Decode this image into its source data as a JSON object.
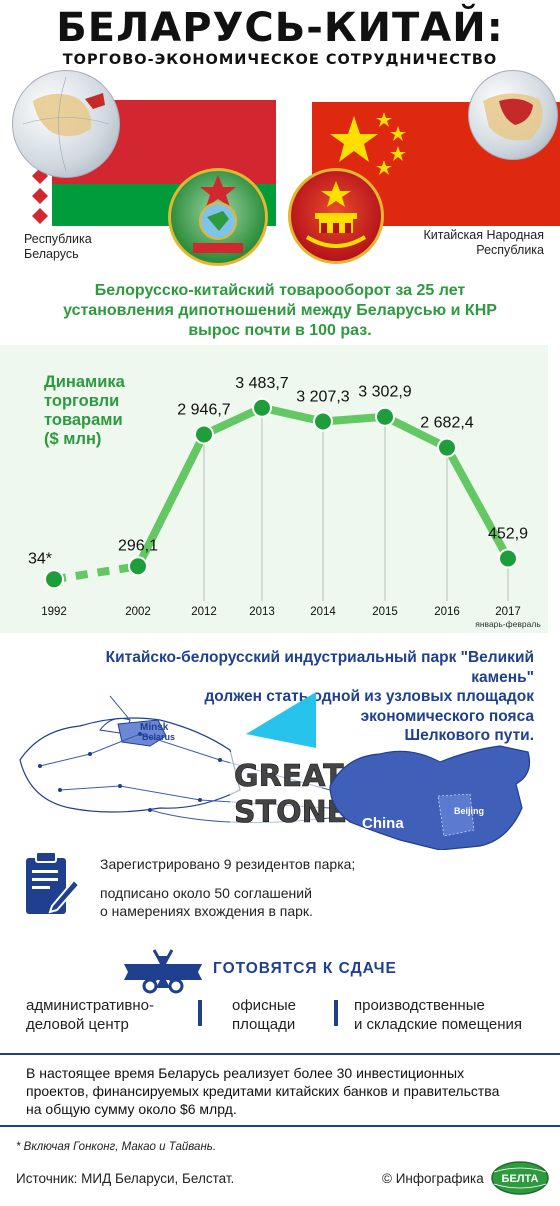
{
  "header": {
    "title": "БЕЛАРУСЬ-КИТАЙ:",
    "subtitle": "ТОРГОВО-ЭКОНОМИЧЕСКОЕ СОТРУДНИЧЕСТВО"
  },
  "countries": {
    "left_line1": "Республика",
    "left_line2": "Беларусь",
    "right_line1": "Китайская Народная",
    "right_line2": "Республика"
  },
  "headline": {
    "line1": "Белорусско-китайский товарооборот за 25 лет",
    "line2": "установления дипотношений между Беларусью и КНР",
    "line3": "вырос почти в 100 раз."
  },
  "chart_data": {
    "type": "line",
    "title_lines": [
      "Динамика",
      "торговли",
      "товарами",
      "($ млн)"
    ],
    "x": [
      "1992",
      "2002",
      "2012",
      "2013",
      "2014",
      "2015",
      "2016",
      "2017"
    ],
    "x_sublabel": "январь-февраль",
    "values": [
      34,
      296.1,
      2946.7,
      3483.7,
      3207.3,
      3302.9,
      2682.4,
      452.9
    ],
    "labels": [
      "34*",
      "296,1",
      "2 946,7",
      "3 483,7",
      "3 207,3",
      "3 302,9",
      "2 682,4",
      "452,9"
    ],
    "ylim": [
      0,
      3700
    ],
    "segments_dashed": [
      true,
      false,
      false,
      false,
      false,
      false,
      false
    ],
    "color": "#63c763",
    "marker_color": "#1d9e3a",
    "grid": false
  },
  "park": {
    "line1": "Китайско-белорусский индустриальный парк \"Великий камень\"",
    "line2": "должен стать одной из узловых площадок",
    "line3": "экономического пояса",
    "line4": "Шелкового пути.",
    "great": "GREAT",
    "stone": "STONE",
    "minsk": "Minsk",
    "belarus": "Belarus",
    "china": "China",
    "beijing": "Beijing"
  },
  "residents": {
    "line1": "Зарегистрировано 9 резидентов парка;",
    "line2": "подписано около 50 соглашений",
    "line3": "о намерениях вхождения в парк."
  },
  "ready": {
    "title": "ГОТОВЯТСЯ К СДАЧЕ",
    "item1_line1": "административно-",
    "item1_line2": "деловой центр",
    "item2_line1": "офисные",
    "item2_line2": "площади",
    "item3_line1": "производственные",
    "item3_line2": "и складские помещения"
  },
  "investment": {
    "line1": "В настоящее время Беларусь реализует более 30 инвестиционных",
    "line2": "проектов, финансируемых кредитами китайских банков и правительства",
    "line3": "на общую сумму около $6 млрд."
  },
  "footer": {
    "footnote": "* Включая Гонконг, Макао и Тайвань.",
    "source": "Источник: МИД Беларуси, Белстат.",
    "credit": "© Инфографика",
    "logo_text": "БЕЛТА"
  },
  "colors": {
    "green": "#2e9a3f",
    "blue": "#1f3f8f",
    "by_red": "#d22730",
    "by_green": "#009b3a",
    "cn_red": "#de2910",
    "cn_gold": "#ffde00"
  },
  "icons": [
    "globe-icon",
    "belarus-emblem-icon",
    "china-emblem-icon",
    "document-pen-icon",
    "ribbon-scissors-icon",
    "belta-logo-icon"
  ]
}
